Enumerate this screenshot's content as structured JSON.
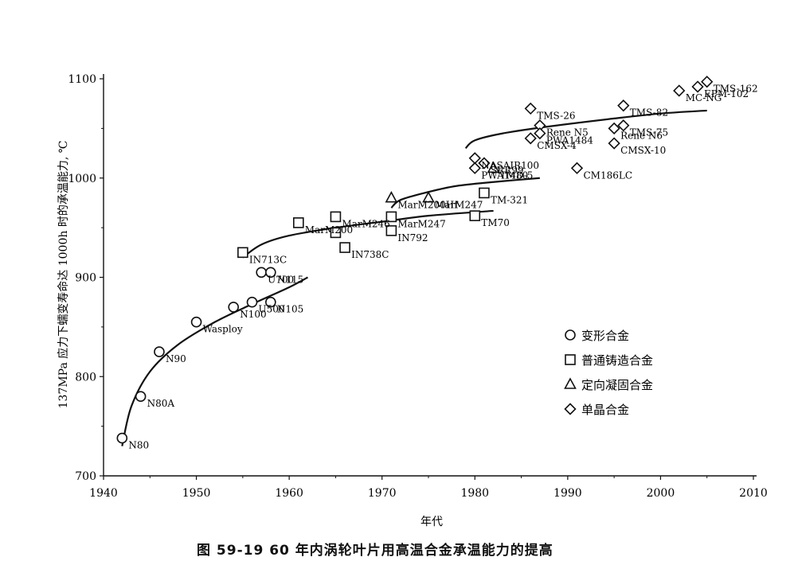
{
  "caption": "图 59-19   60 年内涡轮叶片用高温合金承温能力的提高",
  "chart_data": {
    "type": "scatter",
    "title": "",
    "xlabel": "年代",
    "ylabel": "137MPa 应力下蠕变寿命达 1000h 时的承温能力, ℃",
    "xlim": [
      1940,
      2010
    ],
    "ylim": [
      700,
      1100
    ],
    "xticks": [
      "1940",
      "1950",
      "1960",
      "1970",
      "1980",
      "1990",
      "2000",
      "2010"
    ],
    "yticks": [
      "700",
      "800",
      "900",
      "1000",
      "1100"
    ],
    "legend_position": "right",
    "legend": [
      {
        "marker": "circle",
        "label": "变形合金"
      },
      {
        "marker": "square",
        "label": "普通铸造合金"
      },
      {
        "marker": "triangle",
        "label": "定向凝固合金"
      },
      {
        "marker": "diamond",
        "label": "单晶合金"
      }
    ],
    "series": [
      {
        "name": "变形合金",
        "marker": "circle",
        "points": [
          {
            "x": 1942,
            "y": 738,
            "label": "N80"
          },
          {
            "x": 1944,
            "y": 780,
            "label": "N80A"
          },
          {
            "x": 1946,
            "y": 825,
            "label": "N90"
          },
          {
            "x": 1950,
            "y": 855,
            "label": "Wasploy"
          },
          {
            "x": 1954,
            "y": 870,
            "label": "N100"
          },
          {
            "x": 1956,
            "y": 875,
            "label": "U500"
          },
          {
            "x": 1957,
            "y": 905,
            "label": "U700"
          },
          {
            "x": 1958,
            "y": 905,
            "label": "N115"
          },
          {
            "x": 1958,
            "y": 875,
            "label": "N105"
          }
        ]
      },
      {
        "name": "普通铸造合金",
        "marker": "square",
        "points": [
          {
            "x": 1955,
            "y": 925,
            "label": "IN713C"
          },
          {
            "x": 1961,
            "y": 955,
            "label": "MarM200"
          },
          {
            "x": 1965,
            "y": 961,
            "label": "MarM246"
          },
          {
            "x": 1965,
            "y": 945,
            "label": ""
          },
          {
            "x": 1966,
            "y": 930,
            "label": "IN738C"
          },
          {
            "x": 1971,
            "y": 961,
            "label": "MarM247"
          },
          {
            "x": 1971,
            "y": 947,
            "label": "IN792"
          },
          {
            "x": 1980,
            "y": 962,
            "label": "TM70"
          },
          {
            "x": 1981,
            "y": 985,
            "label": "TM-321"
          }
        ]
      },
      {
        "name": "定向凝固合金",
        "marker": "triangle",
        "points": [
          {
            "x": 1971,
            "y": 980,
            "label": "MarM200Hf"
          },
          {
            "x": 1975,
            "y": 980,
            "label": "MarM247"
          },
          {
            "x": 1982,
            "y": 1010,
            "label": "TMD-5"
          }
        ]
      },
      {
        "name": "单晶合金",
        "marker": "diamond",
        "points": [
          {
            "x": 1980,
            "y": 1020,
            "label": "NASAIR100"
          },
          {
            "x": 1980,
            "y": 1010,
            "label": "PWA1480"
          },
          {
            "x": 1981,
            "y": 1015,
            "label": "SRR99"
          },
          {
            "x": 1986,
            "y": 1070,
            "label": "TMS-26"
          },
          {
            "x": 1987,
            "y": 1053,
            "label": "Rene N5"
          },
          {
            "x": 1986,
            "y": 1040,
            "label": "CMSX-4"
          },
          {
            "x": 1987,
            "y": 1045,
            "label": "PWA1484"
          },
          {
            "x": 1991,
            "y": 1010,
            "label": "CM186LC"
          },
          {
            "x": 1996,
            "y": 1073,
            "label": "TMS-82"
          },
          {
            "x": 1995,
            "y": 1050,
            "label": "Rene N6"
          },
          {
            "x": 1996,
            "y": 1053,
            "label": "TMS-75"
          },
          {
            "x": 1995,
            "y": 1035,
            "label": "CMSX-10"
          },
          {
            "x": 2002,
            "y": 1088,
            "label": "MC-NG"
          },
          {
            "x": 2004,
            "y": 1092,
            "label": "EPM-102"
          },
          {
            "x": 2005,
            "y": 1097,
            "label": "TMS-162"
          }
        ]
      }
    ],
    "trend_lines": [
      {
        "points": [
          [
            1942,
            730
          ],
          [
            1943,
            770
          ],
          [
            1945,
            805
          ],
          [
            1948,
            832
          ],
          [
            1952,
            855
          ],
          [
            1956,
            873
          ],
          [
            1960,
            890
          ],
          [
            1962,
            900
          ]
        ]
      },
      {
        "points": [
          [
            1955,
            920
          ],
          [
            1957,
            933
          ],
          [
            1960,
            942
          ],
          [
            1965,
            950
          ],
          [
            1970,
            956
          ],
          [
            1975,
            962
          ],
          [
            1982,
            967
          ]
        ]
      },
      {
        "points": [
          [
            1971,
            970
          ],
          [
            1972,
            978
          ],
          [
            1975,
            986
          ],
          [
            1978,
            992
          ],
          [
            1982,
            996
          ],
          [
            1987,
            1000
          ]
        ]
      },
      {
        "points": [
          [
            1979,
            1030
          ],
          [
            1980,
            1038
          ],
          [
            1983,
            1045
          ],
          [
            1988,
            1052
          ],
          [
            1995,
            1060
          ],
          [
            2000,
            1065
          ],
          [
            2005,
            1068
          ]
        ]
      }
    ]
  }
}
